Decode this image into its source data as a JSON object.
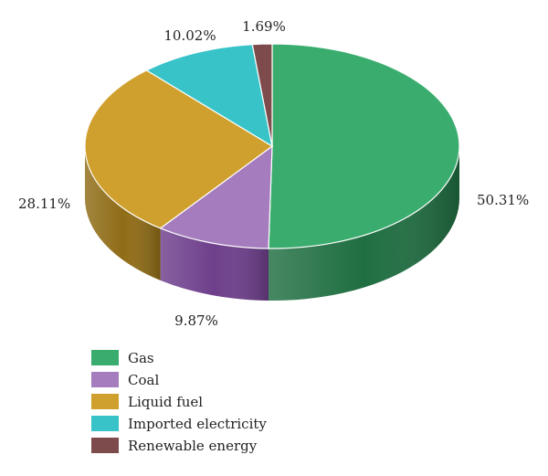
{
  "chart_data": {
    "type": "pie",
    "style": "3d",
    "slices": [
      {
        "label": "Gas",
        "value": 50.31,
        "value_label": "50.31%",
        "color": "#3aad6e",
        "side_color": "#1f6e41"
      },
      {
        "label": "Coal",
        "value": 9.87,
        "value_label": "9.87%",
        "color": "#a57cbd",
        "side_color": "#6e3f8c"
      },
      {
        "label": "Liquid fuel",
        "value": 28.11,
        "value_label": "28.11%",
        "color": "#cfa02d",
        "side_color": "#8f6c16"
      },
      {
        "label": "Imported electricity",
        "value": 10.02,
        "value_label": "10.02%",
        "color": "#38c3c8",
        "side_color": "#1f8a8e"
      },
      {
        "label": "Renewable energy",
        "value": 1.69,
        "value_label": "1.69%",
        "color": "#7d4b4b",
        "side_color": "#4e2a2a"
      }
    ],
    "legend_position": "bottom-left"
  }
}
